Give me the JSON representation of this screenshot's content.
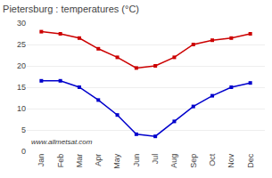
{
  "chart_data": {
    "type": "line",
    "title": "Pietersburg : temperatures (°C)",
    "categories": [
      "Jan",
      "Feb",
      "Mar",
      "Apr",
      "May",
      "Jun",
      "Jul",
      "Aug",
      "Sep",
      "Oct",
      "Nov",
      "Dec"
    ],
    "series": [
      {
        "color": "#cc0000",
        "values": [
          28,
          27.5,
          26.5,
          24,
          22,
          19.5,
          20,
          22,
          25,
          26,
          26.5,
          27.5
        ]
      },
      {
        "color": "#0000cc",
        "values": [
          16.5,
          16.5,
          15,
          12,
          8.5,
          4,
          3.5,
          7,
          10.5,
          13,
          15,
          16
        ]
      }
    ],
    "marker": "square",
    "ylim": [
      0,
      30
    ],
    "yticks": [
      0,
      5,
      10,
      15,
      20,
      25,
      30
    ],
    "grid": true,
    "annotations": [
      "www.allmetsat.com"
    ]
  }
}
